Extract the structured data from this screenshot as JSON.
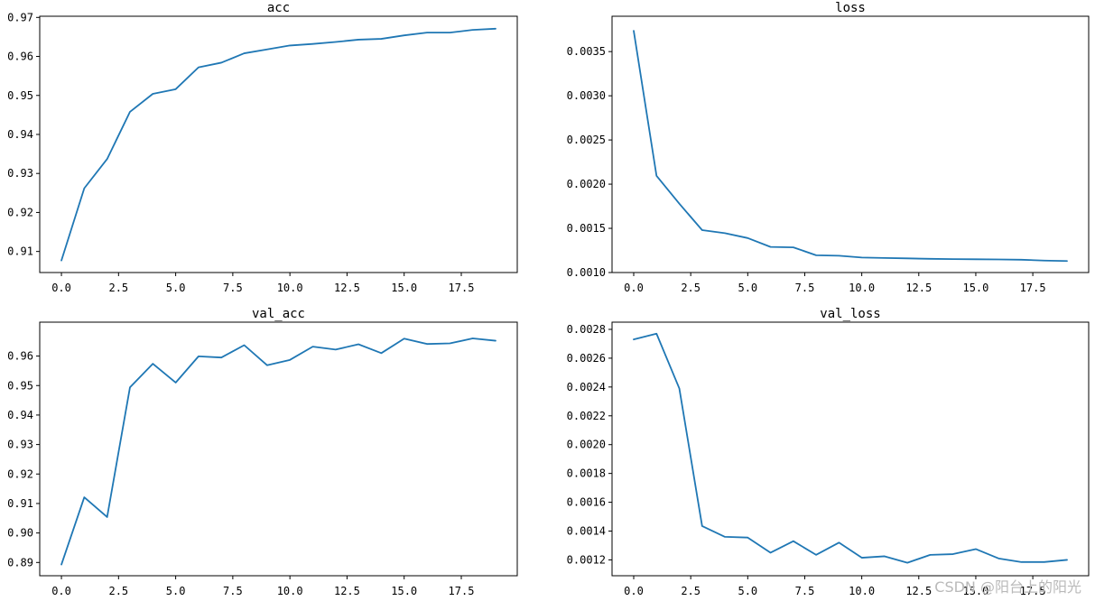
{
  "watermark": "CSDN @阳台上的阳光",
  "line_color": "#1f77b4",
  "chart_data": [
    {
      "type": "line",
      "title": "acc",
      "x": [
        0,
        1,
        2,
        3,
        4,
        5,
        6,
        7,
        8,
        9,
        10,
        11,
        12,
        13,
        14,
        15,
        16,
        17,
        18,
        19
      ],
      "values": [
        0.9077,
        0.9262,
        0.9337,
        0.9458,
        0.9504,
        0.9516,
        0.9572,
        0.9584,
        0.9608,
        0.9618,
        0.9628,
        0.9632,
        0.9637,
        0.9643,
        0.9645,
        0.9654,
        0.9661,
        0.9661,
        0.9668,
        0.9671
      ],
      "xlim": [
        -0.95,
        19.95
      ],
      "ylim": [
        0.9046,
        0.9703
      ],
      "xticks": [
        0,
        2.5,
        5,
        7.5,
        10,
        12.5,
        15,
        17.5
      ],
      "xtick_labels": [
        "0.0",
        "2.5",
        "5.0",
        "7.5",
        "10.0",
        "12.5",
        "15.0",
        "17.5"
      ],
      "yticks": [
        0.91,
        0.92,
        0.93,
        0.94,
        0.95,
        0.96,
        0.97
      ],
      "ytick_labels": [
        "0.91",
        "0.92",
        "0.93",
        "0.94",
        "0.95",
        "0.96",
        "0.97"
      ],
      "grid": false
    },
    {
      "type": "line",
      "title": "loss",
      "x": [
        0,
        1,
        2,
        3,
        4,
        5,
        6,
        7,
        8,
        9,
        10,
        11,
        12,
        13,
        14,
        15,
        16,
        17,
        18,
        19
      ],
      "values": [
        0.003735,
        0.002095,
        0.001779,
        0.00148,
        0.001445,
        0.00139,
        0.00129,
        0.001285,
        0.001195,
        0.00119,
        0.00117,
        0.001165,
        0.00116,
        0.001155,
        0.001152,
        0.00115,
        0.001148,
        0.001145,
        0.001135,
        0.00113
      ],
      "xlim": [
        -0.95,
        19.95
      ],
      "ylim": [
        0.001,
        0.0039
      ],
      "xticks": [
        0,
        2.5,
        5,
        7.5,
        10,
        12.5,
        15,
        17.5
      ],
      "xtick_labels": [
        "0.0",
        "2.5",
        "5.0",
        "7.5",
        "10.0",
        "12.5",
        "15.0",
        "17.5"
      ],
      "yticks": [
        0.001,
        0.0015,
        0.002,
        0.0025,
        0.003,
        0.0035
      ],
      "ytick_labels": [
        "0.0010",
        "0.0015",
        "0.0020",
        "0.0025",
        "0.0030",
        "0.0035"
      ],
      "grid": false
    },
    {
      "type": "line",
      "title": "val_acc",
      "x": [
        0,
        1,
        2,
        3,
        4,
        5,
        6,
        7,
        8,
        9,
        10,
        11,
        12,
        13,
        14,
        15,
        16,
        17,
        18,
        19
      ],
      "values": [
        0.8893,
        0.9121,
        0.9054,
        0.9494,
        0.9574,
        0.951,
        0.9599,
        0.9595,
        0.9637,
        0.9569,
        0.9587,
        0.9632,
        0.9622,
        0.964,
        0.961,
        0.9659,
        0.9641,
        0.9643,
        0.966,
        0.9652
      ],
      "xlim": [
        -0.95,
        19.95
      ],
      "ylim": [
        0.8855,
        0.9715
      ],
      "xticks": [
        0,
        2.5,
        5,
        7.5,
        10,
        12.5,
        15,
        17.5
      ],
      "xtick_labels": [
        "0.0",
        "2.5",
        "5.0",
        "7.5",
        "10.0",
        "12.5",
        "15.0",
        "17.5"
      ],
      "yticks": [
        0.89,
        0.9,
        0.91,
        0.92,
        0.93,
        0.94,
        0.95,
        0.96
      ],
      "ytick_labels": [
        "0.89",
        "0.90",
        "0.91",
        "0.92",
        "0.93",
        "0.94",
        "0.95",
        "0.96"
      ],
      "grid": false
    },
    {
      "type": "line",
      "title": "val_loss",
      "x": [
        0,
        1,
        2,
        3,
        4,
        5,
        6,
        7,
        8,
        9,
        10,
        11,
        12,
        13,
        14,
        15,
        16,
        17,
        18,
        19
      ],
      "values": [
        0.00273,
        0.00277,
        0.00239,
        0.001435,
        0.00136,
        0.001355,
        0.00125,
        0.00133,
        0.001235,
        0.00132,
        0.001215,
        0.001225,
        0.00118,
        0.001235,
        0.00124,
        0.001275,
        0.00121,
        0.001185,
        0.001185,
        0.0012
      ],
      "xlim": [
        -0.95,
        19.95
      ],
      "ylim": [
        0.00109,
        0.00285
      ],
      "xticks": [
        0,
        2.5,
        5,
        7.5,
        10,
        12.5,
        15,
        17.5
      ],
      "xtick_labels": [
        "0.0",
        "2.5",
        "5.0",
        "7.5",
        "10.0",
        "12.5",
        "15.0",
        "17.5"
      ],
      "yticks": [
        0.0012,
        0.0014,
        0.0016,
        0.0018,
        0.002,
        0.0022,
        0.0024,
        0.0026,
        0.0028
      ],
      "ytick_labels": [
        "0.0012",
        "0.0014",
        "0.0016",
        "0.0018",
        "0.0020",
        "0.0022",
        "0.0024",
        "0.0026",
        "0.0028"
      ],
      "grid": false
    }
  ]
}
